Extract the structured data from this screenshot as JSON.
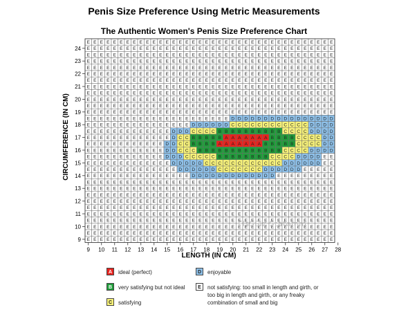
{
  "header": {
    "page_title": "Penis Size Preference Using Metric Measurements",
    "chart_title": "The Authentic Women's Penis Size Preference Chart"
  },
  "chart_data": {
    "type": "heatmap",
    "xlabel": "LENGTH  (IN CM)",
    "ylabel": "CIRCUMFERENCE (IN CM)",
    "x_ticks": [
      "9",
      "10",
      "11",
      "12",
      "13",
      "14",
      "15",
      "16",
      "17",
      "18",
      "19",
      "20",
      "21",
      "22",
      "23",
      "24",
      "25",
      "26",
      "27",
      "28"
    ],
    "y_ticks": [
      "24",
      "23",
      "22",
      "21",
      "20",
      "19",
      "18",
      "17",
      "16",
      "15",
      "14",
      "13",
      "12",
      "11",
      "10",
      "9"
    ],
    "cells_per_unit": 2,
    "columns": 38,
    "row_order": "top-to-bottom",
    "rows": [
      "EEEEEEEEEEEEEEEEEEEEEEEEEEEEEEEEEEEEEE",
      "EEEEEEEEEEEEEEEEEEEEEEEEEEEEEEEEEEEEEE",
      "EEEEEEEEEEEEEEEEEEEEEEEEEEEEEEEEEEEEEE",
      "EEEEEEEEEEEEEEEEEEEEEEEEEEEEEEEEEEEEEE",
      "EEEEEEEEEEEEEEEEEEEEEEEEEEEEEEEEEEEEEE",
      "EEEEEEEEEEEEEEEEEEEEEEEEEEEEEEEEEEEEEE",
      "EEEEEEEEEEEEEEEEEEEEEEEEEEEEEEEEEEEEEE",
      "EEEEEEEEEEEEEEEEEEEEEEEEEEEEEEEEEEEEEE",
      "EEEEEEEEEEEEEEEEEEEEEEEEEEEEEEEEEEEEEE",
      "EEEEEEEEEEEEEEEEEEEEEEEEEEEEEEEEEEEEEE",
      "EEEEEEEEEEEEEEEEEEEEEEEEEEEEEEEEEEEEEE",
      "EEEEEEEEEEEEEEEEEEEEEEEEEEEEEEEEEEEEEE",
      "EEEEEEEEEEEEEEEEEEEEEEDDDDDDDDDDDDDDDD",
      "EEEEEEEEEEEEEEEEDDDDDDCCCCCCCCCCCCDDDD",
      "EEEEEEEEEEEEEDDDCCCCBBBBBBBBBBCCCCDDDD",
      "EEEEEEEEEEEEEDCCBBBBBAAAAAAABBBBCCCCDD",
      "EEEEEEEEEEEEDDCCBBBBAAAAAAABBBBBCCCCDD",
      "EEEEEEEEEEEEDDCCCBBBBBBBBBBBBBCCCCDDDD",
      "EEEEEEEEEEEEDDDCCCCCBBBBBBBBCCCCDDDDEE",
      "EEEEEEEEEEEEEDDDDDCCCCCCCCCCCCDDDDDDEE",
      "EEEEEEEEEEEEEEDDDDDDCCCCCCCDDDDDDEEEEE",
      "EEEEEEEEEEEEEEEEDDDDDDDDDDDDDEEEEEEEEE",
      "EEEEEEEEEEEEEEEEEEEEEEEEEEEEEEEEEEEEEE",
      "EEEEEEEEEEEEEEEEEEEEEEEEEEEEEEEEEEEEEE",
      "EEEEEEEEEEEEEEEEEEEEEEEEEEEEEEEEEEEEEE",
      "EEEEEEEEEEEEEEEEEEEEEEEEEEEEEEEEEEEEEE",
      "EEEEEEEEEEEEEEEEEEEEEEEEEEEEEEEEEEEEEE",
      "EEEEEEEEEEEEEEEEEEEEEEEEEEEEEEEEEEEEEE",
      "EEEEEEEEEEEEEEEEEEEEEEEEEEEEEEEEEEEEEE",
      "EEEEEEEEEEEEEEEEEEEEEEEEEEEEEEEEEEEEEE",
      "EEEEEEEEEEEEEEEEEEEEEEEEEEEEEEEEEEEEEE",
      "EEEEEEEEEEEEEEEEEEEEEEEEEEEEEEEEEEEEEE"
    ],
    "category_colors": {
      "A": "#e8231e",
      "B": "#1f9e3a",
      "C": "#f7f27a",
      "D": "#8ec1ea",
      "E": "#ffffff"
    },
    "legend": [
      {
        "key": "A",
        "label": "ideal (perfect)"
      },
      {
        "key": "B",
        "label": "very satisfying but not ideal"
      },
      {
        "key": "C",
        "label": "satisfying"
      },
      {
        "key": "D",
        "label": "enjoyable"
      },
      {
        "key": "E",
        "label": "not satisfying: too small in length and girth, or too big in length and girth, or any freaky combination of small and big"
      }
    ]
  },
  "watermark": "FlsSSiz  Statomm"
}
